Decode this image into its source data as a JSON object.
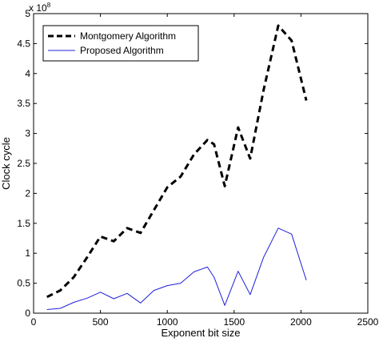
{
  "chart_data": {
    "type": "line",
    "title": "",
    "xlabel": "Exponent bit size",
    "ylabel": "Clock cycle",
    "xlim": [
      0,
      2500
    ],
    "ylim": [
      0,
      5
    ],
    "y_multiplier_label": "x 10",
    "y_multiplier_exponent": "8",
    "grid": false,
    "legend_position": "top-left",
    "x_ticks": [
      {
        "value": 0,
        "label": "0"
      },
      {
        "value": 500,
        "label": "500"
      },
      {
        "value": 1000,
        "label": "1000"
      },
      {
        "value": 1500,
        "label": "1500"
      },
      {
        "value": 2000,
        "label": "2000"
      },
      {
        "value": 2500,
        "label": "2500"
      }
    ],
    "y_ticks": [
      {
        "value": 0,
        "label": "0"
      },
      {
        "value": 0.5,
        "label": "0.5"
      },
      {
        "value": 1,
        "label": "1"
      },
      {
        "value": 1.5,
        "label": "1.5"
      },
      {
        "value": 2,
        "label": "2"
      },
      {
        "value": 2.5,
        "label": "2.5"
      },
      {
        "value": 3,
        "label": "3"
      },
      {
        "value": 3.5,
        "label": "3.5"
      },
      {
        "value": 4,
        "label": "4"
      },
      {
        "value": 4.5,
        "label": "4.5"
      },
      {
        "value": 5,
        "label": "5"
      }
    ],
    "x": [
      100,
      200,
      300,
      400,
      500,
      600,
      700,
      800,
      900,
      1000,
      1100,
      1200,
      1300,
      1350,
      1430,
      1530,
      1620,
      1720,
      1830,
      1930,
      2040
    ],
    "series": [
      {
        "name": "Montgomery Algorithm",
        "style": "dashed",
        "color": "#000000",
        "values": [
          0.27,
          0.38,
          0.6,
          0.93,
          1.28,
          1.2,
          1.42,
          1.34,
          1.72,
          2.1,
          2.28,
          2.65,
          2.89,
          2.82,
          2.12,
          3.1,
          2.58,
          3.72,
          4.8,
          4.55,
          3.55
        ]
      },
      {
        "name": "Proposed Algorithm",
        "style": "solid",
        "color": "#1f1fd8",
        "values": [
          0.06,
          0.08,
          0.18,
          0.25,
          0.35,
          0.24,
          0.33,
          0.17,
          0.38,
          0.46,
          0.5,
          0.69,
          0.77,
          0.6,
          0.13,
          0.7,
          0.31,
          0.93,
          1.42,
          1.32,
          0.55
        ]
      }
    ]
  }
}
